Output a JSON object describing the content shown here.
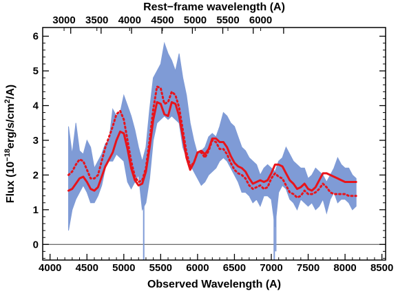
{
  "chart_data": {
    "type": "line",
    "title": "",
    "xlabel": "Observed Wavelength (A)",
    "ylabel_html": "Flux (10<tspan baseline-shift=\"super\" font-size=\"10\">−18</tspan>erg/s/cm<tspan baseline-shift=\"super\" font-size=\"10\">2</tspan>/A)",
    "ylabel_parts": [
      "Flux (10",
      "−18",
      "erg/s/cm",
      "2",
      "/A)"
    ],
    "top_xlabel": "Rest−frame wavelength (A)",
    "xlim": [
      3900,
      8550
    ],
    "ylim": [
      -0.45,
      6.25
    ],
    "xticks": [
      4000,
      4500,
      5000,
      5500,
      6000,
      6500,
      7000,
      7500,
      8000,
      8500
    ],
    "xtick_labels": [
      "4000",
      "4500",
      "5000",
      "5500",
      "6000",
      "6500",
      "7000",
      "7500",
      "8000",
      "8500"
    ],
    "yticks": [
      0,
      1,
      2,
      3,
      4,
      5,
      6
    ],
    "ytick_labels": [
      "0",
      "1",
      "2",
      "3",
      "4",
      "5",
      "6"
    ],
    "top_ticks_observed": [
      3888,
      4280,
      4692,
      5105,
      5517,
      5930,
      6342,
      6755,
      7167
    ],
    "top_tick_labels": [
      "3000",
      "3500",
      "4000",
      "4500",
      "5000",
      "5500",
      "6000"
    ],
    "top_tick_label_observed": [
      4190,
      4635,
      5079,
      5524,
      5968,
      6412,
      6856
    ],
    "zero_line": 0,
    "colors": {
      "spectrum": "#7f9bd6",
      "model": "#e8141b",
      "zero_line": "#555555",
      "axes": "#000000"
    },
    "series": [
      {
        "style": "fill-band",
        "x": [
          4250,
          4300,
          4350,
          4400,
          4450,
          4500,
          4550,
          4600,
          4650,
          4700,
          4750,
          4800,
          4850,
          4900,
          4950,
          5000,
          5050,
          5100,
          5150,
          5200,
          5250,
          5300,
          5350,
          5400,
          5450,
          5500,
          5550,
          5600,
          5650,
          5700,
          5750,
          5800,
          5850,
          5900,
          5950,
          6000,
          6050,
          6100,
          6150,
          6200,
          6250,
          6300,
          6350,
          6400,
          6450,
          6500,
          6550,
          6600,
          6650,
          6700,
          6750,
          6800,
          6850,
          6900,
          6950,
          7000,
          7050,
          7100,
          7150,
          7200,
          7250,
          7300,
          7350,
          7400,
          7450,
          7500,
          7550,
          7600,
          7650,
          7700,
          7750,
          7800,
          7850,
          7900,
          7950,
          8000,
          8050,
          8100,
          8150
        ],
        "lower": [
          0.4,
          1.0,
          1.3,
          1.5,
          1.7,
          1.5,
          1.2,
          1.2,
          1.4,
          1.7,
          2.2,
          2.4,
          2.4,
          2.6,
          2.5,
          2.4,
          1.8,
          1.6,
          1.8,
          2.0,
          1.0,
          1.2,
          1.9,
          3.0,
          3.5,
          3.6,
          3.7,
          3.6,
          3.7,
          3.6,
          3.5,
          2.8,
          2.5,
          2.3,
          2.1,
          1.9,
          1.7,
          1.8,
          2.0,
          2.1,
          2.2,
          2.4,
          2.5,
          2.4,
          2.2,
          2.0,
          1.8,
          1.5,
          1.5,
          1.4,
          1.2,
          1.3,
          1.1,
          1.4,
          1.4,
          1.3,
          0.5,
          1.5,
          1.7,
          1.6,
          1.3,
          1.2,
          1.0,
          1.3,
          1.2,
          1.1,
          1.2,
          1.0,
          1.1,
          1.3,
          0.9,
          1.3,
          1.5,
          1.2,
          1.3,
          1.3,
          1.2,
          1.0,
          1.1
        ],
        "upper": [
          3.4,
          2.6,
          3.5,
          2.7,
          2.6,
          3.0,
          2.8,
          2.2,
          2.4,
          2.6,
          2.9,
          3.0,
          3.9,
          3.7,
          3.8,
          4.3,
          4.0,
          3.7,
          3.3,
          2.8,
          2.4,
          2.8,
          3.9,
          4.8,
          5.0,
          5.2,
          5.8,
          5.5,
          5.3,
          5.0,
          5.5,
          4.8,
          4.3,
          3.5,
          3.0,
          2.6,
          2.7,
          2.8,
          3.1,
          3.2,
          3.1,
          3.4,
          3.8,
          3.7,
          3.5,
          3.4,
          3.1,
          2.8,
          2.7,
          2.5,
          2.4,
          2.3,
          2.0,
          2.2,
          2.3,
          2.2,
          2.1,
          2.4,
          2.5,
          2.8,
          2.6,
          2.4,
          2.3,
          2.2,
          2.2,
          1.9,
          2.0,
          2.2,
          2.1,
          2.0,
          1.8,
          2.0,
          2.2,
          2.5,
          2.3,
          2.2,
          2.2,
          2.0,
          1.9
        ],
        "spikes": [
          [
            5270,
            -0.45
          ],
          [
            7040,
            -0.45
          ],
          [
            7060,
            -0.2
          ]
        ]
      },
      {
        "style": "solid",
        "x": [
          4250,
          4300,
          4350,
          4400,
          4450,
          4500,
          4550,
          4600,
          4650,
          4700,
          4750,
          4800,
          4850,
          4900,
          4950,
          5000,
          5050,
          5100,
          5150,
          5200,
          5250,
          5300,
          5350,
          5400,
          5450,
          5500,
          5550,
          5600,
          5650,
          5700,
          5750,
          5800,
          5850,
          5900,
          5950,
          6000,
          6050,
          6100,
          6150,
          6200,
          6250,
          6300,
          6350,
          6400,
          6450,
          6500,
          6550,
          6600,
          6650,
          6700,
          6750,
          6800,
          6850,
          6900,
          6950,
          7000,
          7050,
          7100,
          7150,
          7200,
          7250,
          7300,
          7350,
          7400,
          7450,
          7500,
          7550,
          7600,
          7650,
          7700,
          7750,
          7800,
          7850,
          7900,
          7950,
          8000,
          8050,
          8100,
          8150
        ],
        "y": [
          1.55,
          1.6,
          1.75,
          1.9,
          1.95,
          1.8,
          1.6,
          1.55,
          1.65,
          1.95,
          2.25,
          2.45,
          2.65,
          3.0,
          3.25,
          3.2,
          2.75,
          2.2,
          1.85,
          1.7,
          1.75,
          2.1,
          2.8,
          3.6,
          4.1,
          4.05,
          3.75,
          3.7,
          4.1,
          4.05,
          3.7,
          3.1,
          2.5,
          2.15,
          2.35,
          2.65,
          2.7,
          2.6,
          2.75,
          3.05,
          3.05,
          2.95,
          2.95,
          2.8,
          2.55,
          2.35,
          2.25,
          2.2,
          2.1,
          1.9,
          1.75,
          1.8,
          1.85,
          1.8,
          1.85,
          2.05,
          2.3,
          2.3,
          2.25,
          2.05,
          1.85,
          1.75,
          1.6,
          1.65,
          1.75,
          1.6,
          1.55,
          1.65,
          1.85,
          2.05,
          2.05,
          2.0,
          1.95,
          1.9,
          1.85,
          1.8,
          1.8,
          1.8,
          1.8
        ]
      },
      {
        "style": "dotted",
        "x": [
          4250,
          4300,
          4350,
          4400,
          4450,
          4500,
          4550,
          4600,
          4650,
          4700,
          4750,
          4800,
          4850,
          4900,
          4950,
          5000,
          5050,
          5100,
          5150,
          5200,
          5250,
          5300,
          5350,
          5400,
          5450,
          5500,
          5550,
          5600,
          5650,
          5700,
          5750,
          5800,
          5850,
          5900,
          5950,
          6000,
          6050,
          6100,
          6150,
          6200,
          6250,
          6300,
          6350,
          6400,
          6450,
          6500,
          6550,
          6600,
          6650,
          6700,
          6750,
          6800,
          6850,
          6900,
          6950,
          7000,
          7050,
          7100,
          7150,
          7200,
          7250,
          7300,
          7350,
          7400,
          7450,
          7500,
          7550,
          7600,
          7650,
          7700,
          7750,
          7800,
          7850,
          7900,
          7950,
          8000,
          8050,
          8100,
          8150
        ],
        "y": [
          2.0,
          2.1,
          2.3,
          2.45,
          2.4,
          2.15,
          1.9,
          1.9,
          2.0,
          2.4,
          2.8,
          3.1,
          3.4,
          3.75,
          3.85,
          3.6,
          3.0,
          2.4,
          1.95,
          1.8,
          1.85,
          2.2,
          3.0,
          3.9,
          4.55,
          4.5,
          4.05,
          4.1,
          4.4,
          4.3,
          3.95,
          3.3,
          2.65,
          2.25,
          2.35,
          2.65,
          2.65,
          2.5,
          2.7,
          3.0,
          2.95,
          2.75,
          2.75,
          2.6,
          2.35,
          2.15,
          2.05,
          2.0,
          1.9,
          1.7,
          1.6,
          1.65,
          1.7,
          1.6,
          1.65,
          1.9,
          2.05,
          1.95,
          1.9,
          1.7,
          1.5,
          1.45,
          1.35,
          1.4,
          1.55,
          1.45,
          1.45,
          1.5,
          1.6,
          1.75,
          1.65,
          1.5,
          1.45,
          1.45,
          1.45,
          1.45,
          1.4,
          1.4,
          1.4
        ]
      }
    ]
  }
}
